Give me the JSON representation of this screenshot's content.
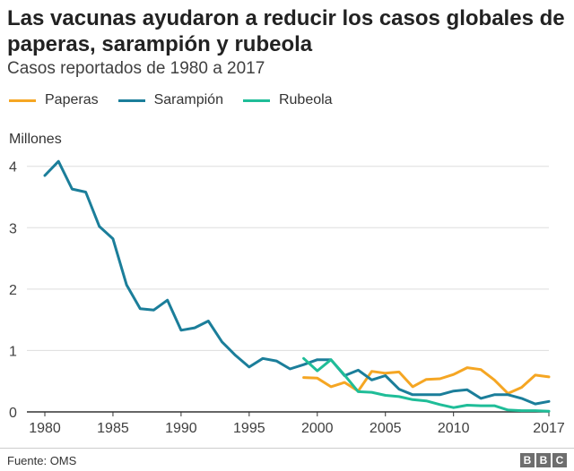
{
  "title": "Las vacunas ayudaron a reducir los casos globales de paperas, sarampión y rubeola",
  "subtitle": "Casos reportados de 1980 a 2017",
  "footer": {
    "source": "Fuente: OMS",
    "logo": "BBC",
    "logo_letters": [
      "B",
      "B",
      "C"
    ]
  },
  "chart_data": {
    "type": "line",
    "title": "Las vacunas ayudaron a reducir los casos globales de paperas, sarampión y rubeola",
    "subtitle": "Casos reportados de 1980 a 2017",
    "ylabel": "Millones",
    "xlabel": "",
    "xlim": [
      1980,
      2017
    ],
    "ylim": [
      0,
      4.2
    ],
    "x_ticks": [
      1980,
      1985,
      1990,
      1995,
      2000,
      2005,
      2010,
      2017
    ],
    "y_ticks": [
      0,
      1,
      2,
      3,
      4
    ],
    "grid": "horizontal",
    "legend_position": "top-left",
    "series": [
      {
        "name": "Paperas",
        "color": "#f5a623",
        "x": [
          1999,
          2000,
          2001,
          2002,
          2003,
          2004,
          2005,
          2006,
          2007,
          2008,
          2009,
          2010,
          2011,
          2012,
          2013,
          2014,
          2015,
          2016,
          2017
        ],
        "y": [
          0.56,
          0.55,
          0.41,
          0.48,
          0.34,
          0.66,
          0.63,
          0.65,
          0.41,
          0.53,
          0.54,
          0.61,
          0.72,
          0.69,
          0.52,
          0.3,
          0.4,
          0.6,
          0.57
        ]
      },
      {
        "name": "Sarampión",
        "color": "#1b7e9a",
        "x": [
          1980,
          1981,
          1982,
          1983,
          1984,
          1985,
          1986,
          1987,
          1988,
          1989,
          1990,
          1991,
          1992,
          1993,
          1994,
          1995,
          1996,
          1997,
          1998,
          1999,
          2000,
          2001,
          2002,
          2003,
          2004,
          2005,
          2006,
          2007,
          2008,
          2009,
          2010,
          2011,
          2012,
          2013,
          2014,
          2015,
          2016,
          2017
        ],
        "y": [
          3.85,
          4.08,
          3.63,
          3.58,
          3.02,
          2.82,
          2.07,
          1.68,
          1.66,
          1.82,
          1.33,
          1.37,
          1.48,
          1.14,
          0.92,
          0.73,
          0.87,
          0.83,
          0.7,
          0.77,
          0.85,
          0.85,
          0.59,
          0.68,
          0.52,
          0.59,
          0.37,
          0.28,
          0.28,
          0.28,
          0.34,
          0.36,
          0.22,
          0.28,
          0.28,
          0.22,
          0.13,
          0.17
        ]
      },
      {
        "name": "Rubeola",
        "color": "#1fbd98",
        "x": [
          1999,
          2000,
          2001,
          2002,
          2003,
          2004,
          2005,
          2006,
          2007,
          2008,
          2009,
          2010,
          2011,
          2012,
          2013,
          2014,
          2015,
          2016,
          2017
        ],
        "y": [
          0.87,
          0.67,
          0.85,
          0.6,
          0.33,
          0.32,
          0.27,
          0.25,
          0.2,
          0.18,
          0.12,
          0.07,
          0.11,
          0.1,
          0.1,
          0.03,
          0.02,
          0.02,
          0.01
        ]
      }
    ]
  }
}
